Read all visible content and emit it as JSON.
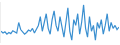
{
  "chart_data": {
    "type": "line",
    "color": "#3a8fd0",
    "categories": [
      null,
      null,
      null,
      null,
      null,
      null,
      null,
      null,
      null,
      null,
      null,
      null,
      null,
      null,
      null,
      null,
      null,
      null,
      null,
      null,
      null,
      null,
      null,
      null,
      null,
      null,
      null,
      null,
      null,
      null,
      null,
      null,
      null,
      null,
      null,
      null,
      null,
      null,
      null,
      null,
      null,
      null,
      null,
      null,
      null,
      null,
      null,
      null,
      null,
      null,
      null,
      null,
      null,
      null,
      null,
      null,
      null,
      null,
      null,
      null,
      null
    ],
    "values": [
      45,
      42,
      44,
      40,
      43,
      41,
      46,
      44,
      42,
      60,
      48,
      44,
      40,
      43,
      47,
      45,
      50,
      42,
      48,
      55,
      70,
      45,
      60,
      75,
      50,
      40,
      65,
      80,
      55,
      45,
      70,
      50,
      35,
      60,
      85,
      45,
      30,
      65,
      55,
      75,
      40,
      60,
      90,
      50,
      35,
      70,
      45,
      55,
      30,
      60,
      50,
      65,
      40,
      55,
      75,
      45,
      60,
      50,
      55,
      48,
      52
    ],
    "ylim": [
      25,
      95
    ],
    "grid": false,
    "tick_labels": false
  }
}
